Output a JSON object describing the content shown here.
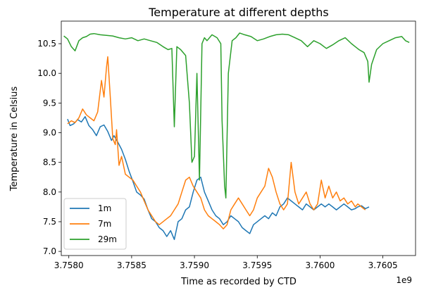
{
  "chart_data": {
    "type": "line",
    "title": "Temperature at different depths",
    "xlabel": "Time as recorded by CTD",
    "ylabel": "Temperature in Celsius",
    "x_offset_label": "1e9",
    "xlim": [
      3.75794,
      3.76076
    ],
    "ylim": [
      6.93,
      10.88
    ],
    "xticks": [
      3.758,
      3.7585,
      3.759,
      3.7595,
      3.76,
      3.7605
    ],
    "xtick_labels": [
      "3.7580",
      "3.7585",
      "3.7590",
      "3.7595",
      "3.7600",
      "3.7605"
    ],
    "yticks": [
      7.0,
      7.5,
      8.0,
      8.5,
      9.0,
      9.5,
      10.0,
      10.5
    ],
    "ytick_labels": [
      "7.0",
      "7.5",
      "8.0",
      "8.5",
      "9.0",
      "9.5",
      "10.0",
      "10.5"
    ],
    "legend_position": "lower-left",
    "grid": false,
    "series": [
      {
        "name": "1m",
        "color": "#1f77b4",
        "points": [
          [
            3.75799,
            9.23
          ],
          [
            3.75801,
            9.12
          ],
          [
            3.75804,
            9.15
          ],
          [
            3.75807,
            9.22
          ],
          [
            3.7581,
            9.18
          ],
          [
            3.75813,
            9.27
          ],
          [
            3.75816,
            9.12
          ],
          [
            3.75819,
            9.05
          ],
          [
            3.75822,
            8.95
          ],
          [
            3.75825,
            9.1
          ],
          [
            3.75828,
            9.13
          ],
          [
            3.75831,
            9.02
          ],
          [
            3.75834,
            8.87
          ],
          [
            3.75836,
            8.95
          ],
          [
            3.75839,
            8.84
          ],
          [
            3.75842,
            8.72
          ],
          [
            3.75845,
            8.55
          ],
          [
            3.75848,
            8.35
          ],
          [
            3.75851,
            8.18
          ],
          [
            3.75854,
            8.0
          ],
          [
            3.75857,
            7.95
          ],
          [
            3.7586,
            7.88
          ],
          [
            3.75863,
            7.7
          ],
          [
            3.75866,
            7.55
          ],
          [
            3.75869,
            7.5
          ],
          [
            3.75872,
            7.4
          ],
          [
            3.75875,
            7.35
          ],
          [
            3.75878,
            7.25
          ],
          [
            3.75881,
            7.35
          ],
          [
            3.75884,
            7.2
          ],
          [
            3.75887,
            7.5
          ],
          [
            3.7589,
            7.55
          ],
          [
            3.75893,
            7.7
          ],
          [
            3.75896,
            7.75
          ],
          [
            3.75899,
            8.0
          ],
          [
            3.75902,
            8.2
          ],
          [
            3.75905,
            8.25
          ],
          [
            3.75908,
            8.0
          ],
          [
            3.75911,
            7.85
          ],
          [
            3.75914,
            7.7
          ],
          [
            3.75917,
            7.6
          ],
          [
            3.7592,
            7.55
          ],
          [
            3.75923,
            7.45
          ],
          [
            3.75926,
            7.5
          ],
          [
            3.75929,
            7.6
          ],
          [
            3.75932,
            7.55
          ],
          [
            3.75935,
            7.5
          ],
          [
            3.75938,
            7.4
          ],
          [
            3.75941,
            7.35
          ],
          [
            3.75944,
            7.3
          ],
          [
            3.75947,
            7.45
          ],
          [
            3.7595,
            7.5
          ],
          [
            3.75953,
            7.55
          ],
          [
            3.75956,
            7.6
          ],
          [
            3.75959,
            7.55
          ],
          [
            3.75962,
            7.65
          ],
          [
            3.75965,
            7.6
          ],
          [
            3.75968,
            7.75
          ],
          [
            3.75971,
            7.8
          ],
          [
            3.75974,
            7.9
          ],
          [
            3.75977,
            7.85
          ],
          [
            3.7598,
            7.8
          ],
          [
            3.75983,
            7.75
          ],
          [
            3.75986,
            7.7
          ],
          [
            3.75989,
            7.8
          ],
          [
            3.75992,
            7.75
          ],
          [
            3.75995,
            7.7
          ],
          [
            3.75998,
            7.75
          ],
          [
            3.76001,
            7.8
          ],
          [
            3.76004,
            7.75
          ],
          [
            3.76007,
            7.8
          ],
          [
            3.7601,
            7.75
          ],
          [
            3.76013,
            7.7
          ],
          [
            3.76016,
            7.75
          ],
          [
            3.76019,
            7.8
          ],
          [
            3.76022,
            7.75
          ],
          [
            3.76025,
            7.7
          ],
          [
            3.76028,
            7.72
          ],
          [
            3.7603,
            7.75
          ],
          [
            3.76033,
            7.77
          ],
          [
            3.76036,
            7.72
          ],
          [
            3.76039,
            7.75
          ]
        ]
      },
      {
        "name": "7m",
        "color": "#ff7f0e",
        "points": [
          [
            3.75799,
            9.15
          ],
          [
            3.75802,
            9.2
          ],
          [
            3.75805,
            9.17
          ],
          [
            3.75808,
            9.25
          ],
          [
            3.75811,
            9.4
          ],
          [
            3.75814,
            9.3
          ],
          [
            3.75817,
            9.25
          ],
          [
            3.7582,
            9.2
          ],
          [
            3.75823,
            9.35
          ],
          [
            3.75826,
            9.88
          ],
          [
            3.75828,
            9.6
          ],
          [
            3.7583,
            10.1
          ],
          [
            3.75831,
            10.28
          ],
          [
            3.75833,
            9.6
          ],
          [
            3.75835,
            8.9
          ],
          [
            3.75837,
            8.8
          ],
          [
            3.75838,
            9.05
          ],
          [
            3.7584,
            8.45
          ],
          [
            3.75842,
            8.6
          ],
          [
            3.75845,
            8.3
          ],
          [
            3.75848,
            8.25
          ],
          [
            3.75851,
            8.2
          ],
          [
            3.75854,
            8.1
          ],
          [
            3.75857,
            8.0
          ],
          [
            3.7586,
            7.85
          ],
          [
            3.75863,
            7.7
          ],
          [
            3.75866,
            7.6
          ],
          [
            3.75869,
            7.5
          ],
          [
            3.75872,
            7.45
          ],
          [
            3.75875,
            7.5
          ],
          [
            3.75878,
            7.55
          ],
          [
            3.75881,
            7.6
          ],
          [
            3.75884,
            7.7
          ],
          [
            3.75887,
            7.8
          ],
          [
            3.7589,
            8.0
          ],
          [
            3.75893,
            8.2
          ],
          [
            3.75896,
            8.25
          ],
          [
            3.75899,
            8.1
          ],
          [
            3.75902,
            8.0
          ],
          [
            3.75905,
            7.9
          ],
          [
            3.75908,
            7.7
          ],
          [
            3.75911,
            7.6
          ],
          [
            3.75914,
            7.55
          ],
          [
            3.75917,
            7.5
          ],
          [
            3.7592,
            7.45
          ],
          [
            3.75923,
            7.38
          ],
          [
            3.75926,
            7.45
          ],
          [
            3.75929,
            7.7
          ],
          [
            3.75932,
            7.8
          ],
          [
            3.75935,
            7.9
          ],
          [
            3.75938,
            7.8
          ],
          [
            3.75941,
            7.7
          ],
          [
            3.75944,
            7.6
          ],
          [
            3.75947,
            7.7
          ],
          [
            3.7595,
            7.9
          ],
          [
            3.75953,
            8.0
          ],
          [
            3.75956,
            8.1
          ],
          [
            3.75959,
            8.4
          ],
          [
            3.75962,
            8.25
          ],
          [
            3.75965,
            8.0
          ],
          [
            3.75968,
            7.8
          ],
          [
            3.75971,
            7.7
          ],
          [
            3.75974,
            7.8
          ],
          [
            3.75977,
            8.5
          ],
          [
            3.7598,
            8.0
          ],
          [
            3.75983,
            7.8
          ],
          [
            3.75986,
            7.9
          ],
          [
            3.75989,
            8.0
          ],
          [
            3.75992,
            7.8
          ],
          [
            3.75995,
            7.7
          ],
          [
            3.75998,
            7.8
          ],
          [
            3.76001,
            8.2
          ],
          [
            3.76004,
            7.9
          ],
          [
            3.76007,
            8.1
          ],
          [
            3.7601,
            7.9
          ],
          [
            3.76013,
            8.0
          ],
          [
            3.76016,
            7.85
          ],
          [
            3.76019,
            7.9
          ],
          [
            3.76022,
            7.8
          ],
          [
            3.76025,
            7.85
          ],
          [
            3.76028,
            7.75
          ],
          [
            3.7603,
            7.8
          ],
          [
            3.76033,
            7.75
          ],
          [
            3.76036,
            7.7
          ]
        ]
      },
      {
        "name": "29m",
        "color": "#2ca02c",
        "points": [
          [
            3.75796,
            10.63
          ],
          [
            3.75799,
            10.58
          ],
          [
            3.75802,
            10.45
          ],
          [
            3.75805,
            10.38
          ],
          [
            3.75808,
            10.55
          ],
          [
            3.75811,
            10.6
          ],
          [
            3.75814,
            10.62
          ],
          [
            3.75817,
            10.66
          ],
          [
            3.7582,
            10.67
          ],
          [
            3.75825,
            10.65
          ],
          [
            3.7583,
            10.64
          ],
          [
            3.75835,
            10.63
          ],
          [
            3.7584,
            10.6
          ],
          [
            3.75845,
            10.58
          ],
          [
            3.7585,
            10.6
          ],
          [
            3.75855,
            10.55
          ],
          [
            3.7586,
            10.58
          ],
          [
            3.75865,
            10.55
          ],
          [
            3.7587,
            10.52
          ],
          [
            3.75875,
            10.45
          ],
          [
            3.75879,
            10.4
          ],
          [
            3.75882,
            10.42
          ],
          [
            3.75884,
            9.1
          ],
          [
            3.75886,
            10.45
          ],
          [
            3.75889,
            10.4
          ],
          [
            3.75893,
            10.3
          ],
          [
            3.75896,
            9.5
          ],
          [
            3.75898,
            8.5
          ],
          [
            3.759,
            8.6
          ],
          [
            3.75902,
            10.0
          ],
          [
            3.75904,
            8.2
          ],
          [
            3.75906,
            10.5
          ],
          [
            3.75908,
            10.6
          ],
          [
            3.7591,
            10.55
          ],
          [
            3.75914,
            10.65
          ],
          [
            3.75918,
            10.6
          ],
          [
            3.75921,
            10.5
          ],
          [
            3.75922,
            9.2
          ],
          [
            3.75924,
            8.1
          ],
          [
            3.75925,
            7.9
          ],
          [
            3.75927,
            10.0
          ],
          [
            3.7593,
            10.55
          ],
          [
            3.75933,
            10.6
          ],
          [
            3.75936,
            10.68
          ],
          [
            3.7594,
            10.65
          ],
          [
            3.75945,
            10.62
          ],
          [
            3.7595,
            10.55
          ],
          [
            3.75955,
            10.58
          ],
          [
            3.7596,
            10.62
          ],
          [
            3.75965,
            10.65
          ],
          [
            3.7597,
            10.66
          ],
          [
            3.75975,
            10.65
          ],
          [
            3.7598,
            10.6
          ],
          [
            3.75985,
            10.55
          ],
          [
            3.7599,
            10.45
          ],
          [
            3.75995,
            10.55
          ],
          [
            3.76,
            10.5
          ],
          [
            3.76005,
            10.42
          ],
          [
            3.7601,
            10.48
          ],
          [
            3.76015,
            10.55
          ],
          [
            3.7602,
            10.6
          ],
          [
            3.76025,
            10.5
          ],
          [
            3.76028,
            10.45
          ],
          [
            3.76031,
            10.4
          ],
          [
            3.76035,
            10.35
          ],
          [
            3.76038,
            10.2
          ],
          [
            3.76039,
            9.85
          ],
          [
            3.76041,
            10.15
          ],
          [
            3.76045,
            10.4
          ],
          [
            3.7605,
            10.5
          ],
          [
            3.76055,
            10.55
          ],
          [
            3.7606,
            10.6
          ],
          [
            3.76065,
            10.62
          ],
          [
            3.76068,
            10.55
          ],
          [
            3.76071,
            10.52
          ]
        ]
      }
    ]
  }
}
